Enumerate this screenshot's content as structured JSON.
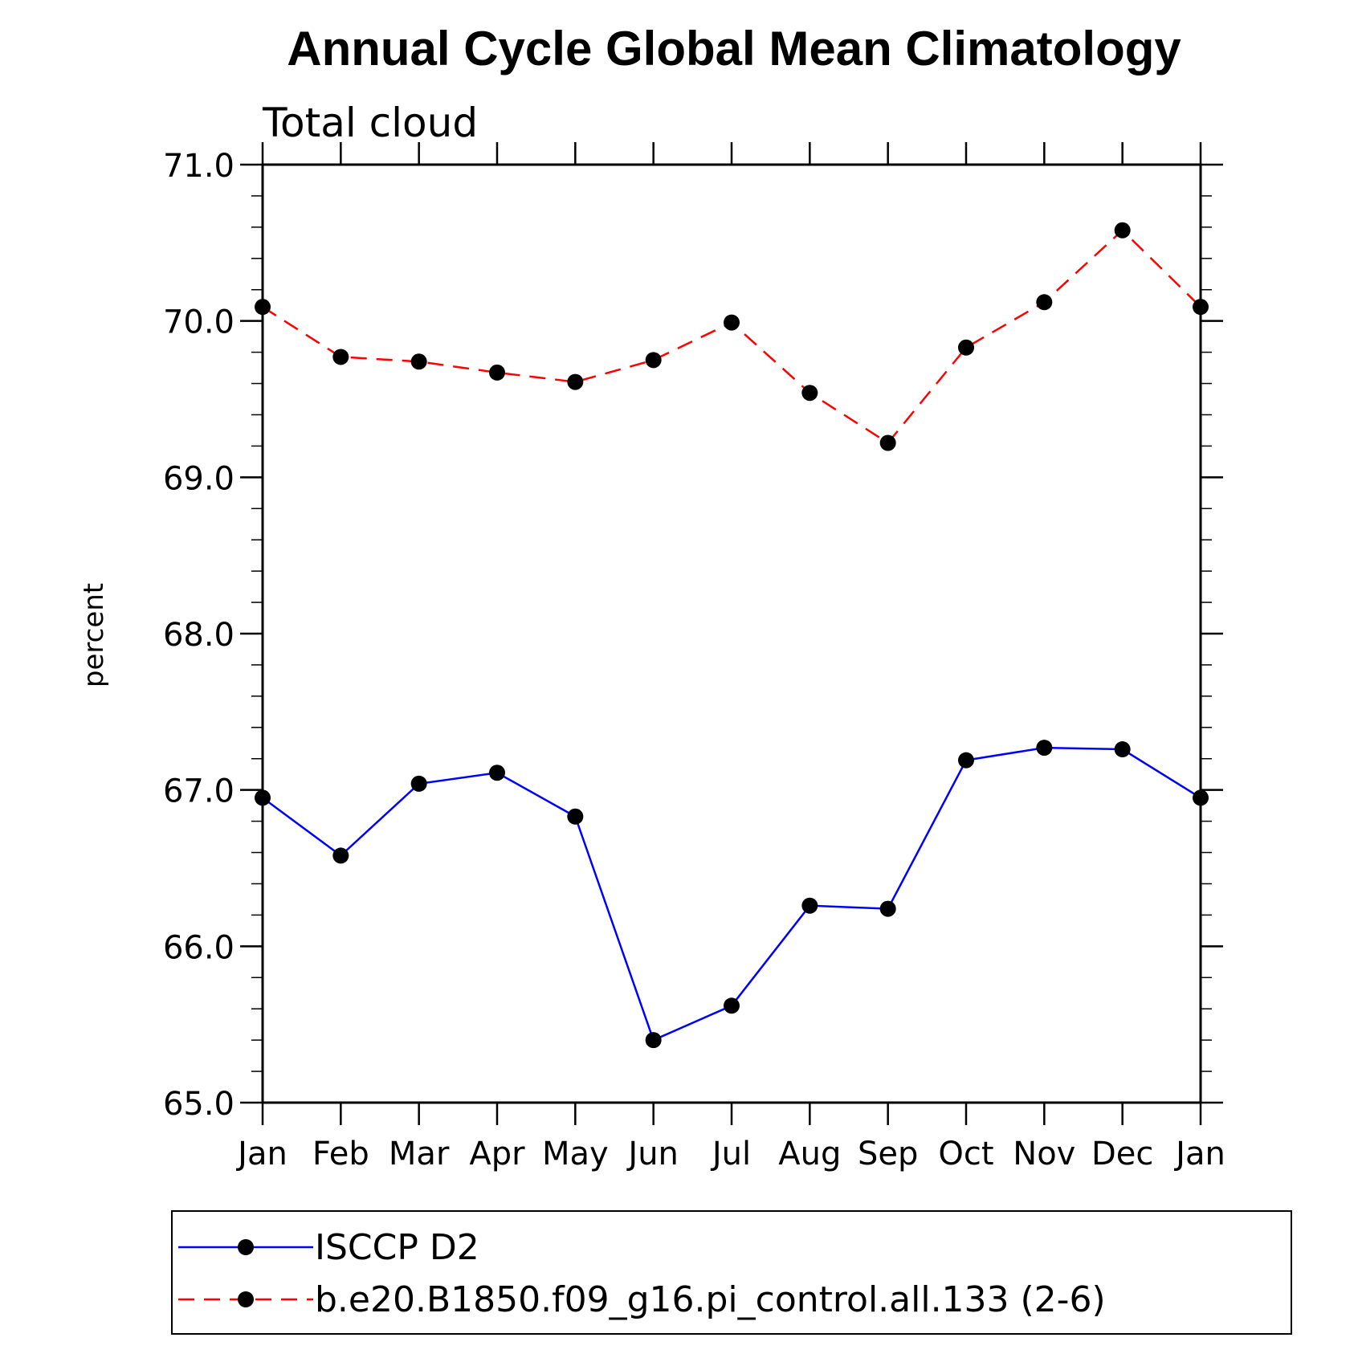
{
  "chart_data": {
    "type": "line",
    "title": "Annual Cycle Global Mean Climatology",
    "subtitle": "Total cloud",
    "xlabel": "",
    "ylabel": "percent",
    "categories": [
      "Jan",
      "Feb",
      "Mar",
      "Apr",
      "May",
      "Jun",
      "Jul",
      "Aug",
      "Sep",
      "Oct",
      "Nov",
      "Dec",
      "Jan"
    ],
    "ylim": [
      65.0,
      71.0
    ],
    "yticks": [
      "65.0",
      "66.0",
      "67.0",
      "68.0",
      "69.0",
      "70.0",
      "71.0"
    ],
    "grid": false,
    "legend_position": "bottom",
    "series": [
      {
        "name": "ISCCP D2",
        "color": "#0000ff",
        "dash": "solid",
        "values": [
          66.95,
          66.58,
          67.04,
          67.11,
          66.83,
          65.4,
          65.62,
          66.26,
          66.24,
          67.19,
          67.27,
          67.26,
          66.95
        ]
      },
      {
        "name": "b.e20.B1850.f09_g16.pi_control.all.133 (2-6)",
        "color": "#ff0000",
        "dash": "dashed",
        "values": [
          70.09,
          69.77,
          69.74,
          69.67,
          69.61,
          69.75,
          69.99,
          69.54,
          69.22,
          69.83,
          70.12,
          70.58,
          70.09
        ]
      }
    ]
  }
}
